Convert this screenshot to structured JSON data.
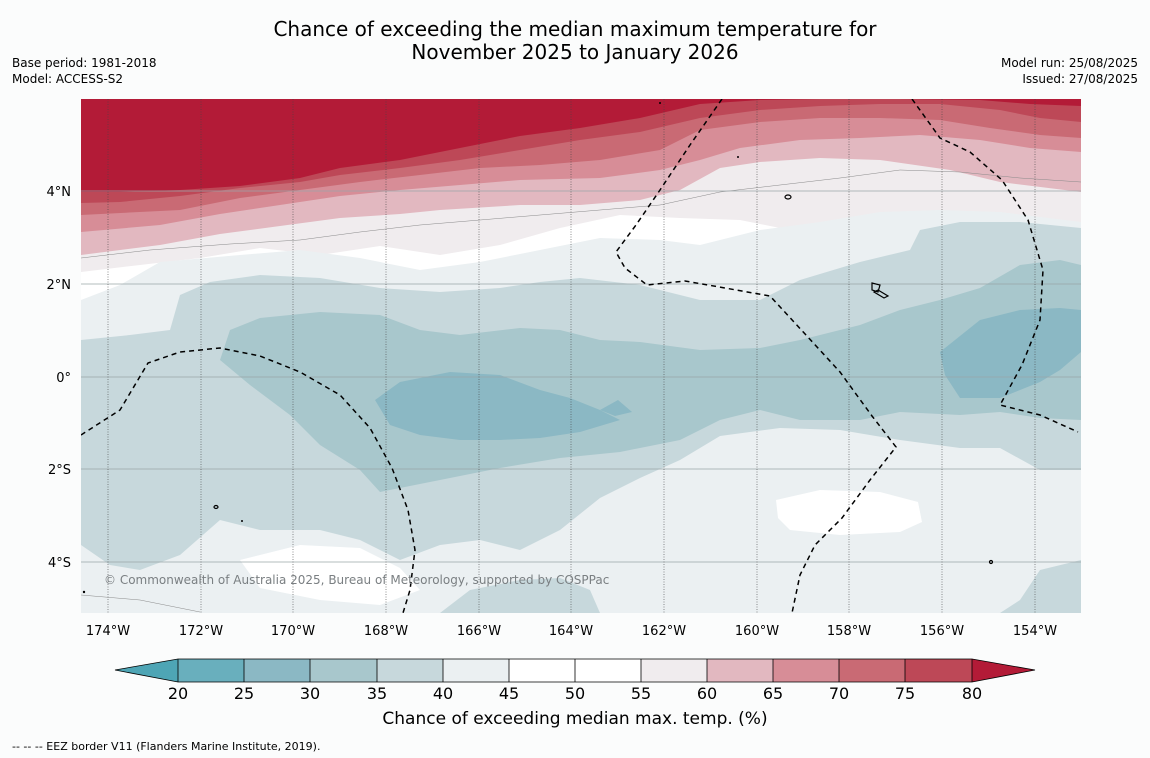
{
  "title": {
    "line1": "Chance of exceeding the median maximum temperature for",
    "line2": "November 2025 to January 2026"
  },
  "meta_left": {
    "base_period": "Base period: 1981-2018",
    "model": "Model: ACCESS-S2"
  },
  "meta_right": {
    "model_run": "Model run: 25/08/2025",
    "issued": "Issued: 27/08/2025"
  },
  "map": {
    "lat_labels": [
      "4°N",
      "2°N",
      "0°",
      "2°S",
      "4°S"
    ],
    "lon_labels": [
      "174°W",
      "172°W",
      "170°W",
      "168°W",
      "166°W",
      "164°W",
      "162°W",
      "160°W",
      "158°W",
      "156°W",
      "154°W"
    ],
    "copyright": "© Commonwealth of Australia 2025, Bureau of Meteorology, supported by COSPPac"
  },
  "colorbar": {
    "ticks": [
      "20",
      "25",
      "30",
      "35",
      "40",
      "45",
      "50",
      "55",
      "60",
      "65",
      "70",
      "75",
      "80"
    ],
    "colors": {
      "lt20": "#4ea5b5",
      "c20_25": "#69afbd",
      "c25_30": "#8bb8c4",
      "c30_35": "#a8c7cc",
      "c35_40": "#c7d8dc",
      "c40_45": "#ebf0f2",
      "c45_55": "#ffffff",
      "c55_60": "#f0ecee",
      "c60_65": "#e2b8c0",
      "c65_70": "#d78d97",
      "c70_75": "#c96a74",
      "c75_80": "#bd4857",
      "gt80": "#b31b37"
    },
    "label": "Chance of exceeding median max. temp. (%)"
  },
  "footer": "--  --  -- EEZ border V11 (Flanders Marine Institute, 2019)."
}
